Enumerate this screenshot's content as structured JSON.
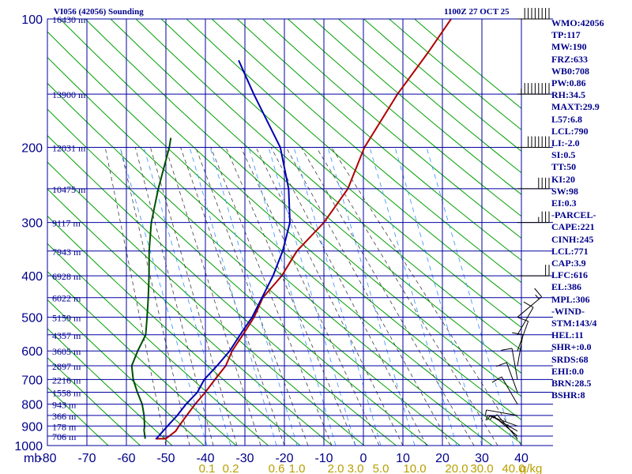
{
  "header": {
    "station": "VI056 (42056) Sounding",
    "time": "1100Z 27 OCT 25"
  },
  "side_panel": [
    "WMO:42056",
    "TP:117",
    "MW:190",
    "FRZ:633",
    "WB0:708",
    "PW:0.86",
    "RH:34.5",
    "MAXT:29.9",
    "L57:6.8",
    "LCL:790",
    "LI:-2.0",
    "SI:0.5",
    "TT:50",
    "KI:20",
    "SW:98",
    "EI:0.3",
    "-PARCEL-",
    "CAPE:221",
    "CINH:245",
    "LCL:771",
    "CAP:3.9",
    "LFC:616",
    "EL:386",
    "MPL:306",
    "-WIND-",
    "STM:143/4",
    "HEL:11",
    "SHR+:0.0",
    "SRDS:68",
    "EHI:0.0",
    "BRN:28.5",
    "BSHR:8"
  ],
  "colors": {
    "isobar": "#0000a0",
    "isotherm": "#0000a0",
    "dry_adiabat": "#00a000",
    "moist_adiabat": "#404040",
    "mixing_ratio": "#3090ff",
    "temperature": "#b00000",
    "dewpoint": "#005000",
    "parcel": "#0000b0",
    "text": "#00008b"
  },
  "chart_data": {
    "type": "line",
    "title": "",
    "xlabel": "",
    "ylabel": "mb",
    "y_scale": "log",
    "ylim": [
      1000,
      100
    ],
    "xlim": [
      -80,
      40
    ],
    "pressure_ticks": [
      100,
      200,
      300,
      400,
      500,
      600,
      700,
      800,
      900,
      1000
    ],
    "temperature_ticks": [
      -80,
      -70,
      -60,
      -50,
      -40,
      -30,
      -20,
      -10,
      0,
      10,
      20,
      30,
      40
    ],
    "mixing_ratio_labels": [
      "0.1",
      "0.2",
      "0.6",
      "1.0",
      "2.0",
      "3.0",
      "5.0",
      "10.0",
      "20.0",
      "30.0",
      "40.0"
    ],
    "mixing_ratio_unit": "g/kg",
    "height_labels": [
      {
        "p": 100,
        "label": "16430 m"
      },
      {
        "p": 150,
        "label": "13900 m"
      },
      {
        "p": 200,
        "label": "12031 m"
      },
      {
        "p": 250,
        "label": "10475 m"
      },
      {
        "p": 300,
        "label": "9117 m"
      },
      {
        "p": 350,
        "label": "7943 m"
      },
      {
        "p": 400,
        "label": "6928 m"
      },
      {
        "p": 450,
        "label": "6022 m"
      },
      {
        "p": 500,
        "label": "5159 m"
      },
      {
        "p": 550,
        "label": "4357 m"
      },
      {
        "p": 600,
        "label": "3605 m"
      },
      {
        "p": 650,
        "label": "2897 m"
      },
      {
        "p": 700,
        "label": "2216 m"
      },
      {
        "p": 750,
        "label": "1558 m"
      },
      {
        "p": 800,
        "label": "943 m"
      },
      {
        "p": 850,
        "label": "366 m"
      },
      {
        "p": 900,
        "label": "178 m"
      },
      {
        "p": 950,
        "label": "706 m"
      }
    ],
    "series": [
      {
        "key": "temperature",
        "points": [
          [
            964,
            -53.2
          ],
          [
            964,
            -50.6
          ],
          [
            925,
            -48.7
          ],
          [
            900,
            -48.3
          ],
          [
            850,
            -47.2
          ],
          [
            800,
            -46.0
          ],
          [
            750,
            -44.4
          ],
          [
            700,
            -43.0
          ],
          [
            650,
            -41.4
          ],
          [
            600,
            -41.0
          ],
          [
            550,
            -39.6
          ],
          [
            500,
            -38.2
          ],
          [
            450,
            -37.6
          ],
          [
            400,
            -34.6
          ],
          [
            350,
            -32.8
          ],
          [
            300,
            -28.3
          ],
          [
            250,
            -25.0
          ],
          [
            200,
            -24.2
          ],
          [
            150,
            -20.2
          ],
          [
            120,
            -15.9
          ],
          [
            100,
            -12.8
          ]
        ]
      },
      {
        "key": "dewpoint",
        "points": [
          [
            964,
            -55.8
          ],
          [
            920,
            -56.8
          ],
          [
            900,
            -57.0
          ],
          [
            850,
            -58.0
          ],
          [
            800,
            -59.4
          ],
          [
            750,
            -61.6
          ],
          [
            700,
            -63.7
          ],
          [
            650,
            -65.2
          ],
          [
            600,
            -64.9
          ],
          [
            550,
            -64.2
          ],
          [
            500,
            -65.3
          ],
          [
            450,
            -66.6
          ],
          [
            400,
            -68.2
          ],
          [
            350,
            -70.2
          ],
          [
            300,
            -72.0
          ],
          [
            250,
            -73.0
          ],
          [
            200,
            -73.6
          ],
          [
            190,
            -74.0
          ]
        ]
      },
      {
        "key": "parcel",
        "points": [
          [
            964,
            -53.0
          ],
          [
            900,
            -51.2
          ],
          [
            850,
            -49.6
          ],
          [
            800,
            -48.3
          ],
          [
            750,
            -46.4
          ],
          [
            700,
            -45.7
          ],
          [
            650,
            -43.6
          ],
          [
            600,
            -41.6
          ],
          [
            550,
            -40.3
          ],
          [
            500,
            -38.7
          ],
          [
            450,
            -37.8
          ],
          [
            400,
            -36.8
          ],
          [
            350,
            -36.4
          ],
          [
            300,
            -36.9
          ],
          [
            250,
            -40.0
          ],
          [
            200,
            -45.5
          ],
          [
            150,
            -56.6
          ],
          [
            125,
            -63.2
          ]
        ]
      }
    ],
    "wind_barbs": [
      {
        "p": 100,
        "dir": 270,
        "spd": 80
      },
      {
        "p": 150,
        "dir": 270,
        "spd": 85
      },
      {
        "p": 200,
        "dir": 270,
        "spd": 70
      },
      {
        "p": 250,
        "dir": 270,
        "spd": 40
      },
      {
        "p": 300,
        "dir": 270,
        "spd": 35
      },
      {
        "p": 400,
        "dir": 270,
        "spd": 20
      },
      {
        "p": 500,
        "dir": 230,
        "spd": 15
      },
      {
        "p": 550,
        "dir": 210,
        "spd": 10
      },
      {
        "p": 600,
        "dir": 200,
        "spd": 10
      },
      {
        "p": 650,
        "dir": 190,
        "spd": 10
      },
      {
        "p": 700,
        "dir": 170,
        "spd": 10
      },
      {
        "p": 750,
        "dir": 160,
        "spd": 10
      },
      {
        "p": 800,
        "dir": 150,
        "spd": 10
      },
      {
        "p": 850,
        "dir": 100,
        "spd": 5
      },
      {
        "p": 900,
        "dir": 110,
        "spd": 5
      },
      {
        "p": 925,
        "dir": 120,
        "spd": 5
      },
      {
        "p": 950,
        "dir": 130,
        "spd": 5
      },
      {
        "p": 964,
        "dir": 140,
        "spd": 5
      }
    ]
  }
}
